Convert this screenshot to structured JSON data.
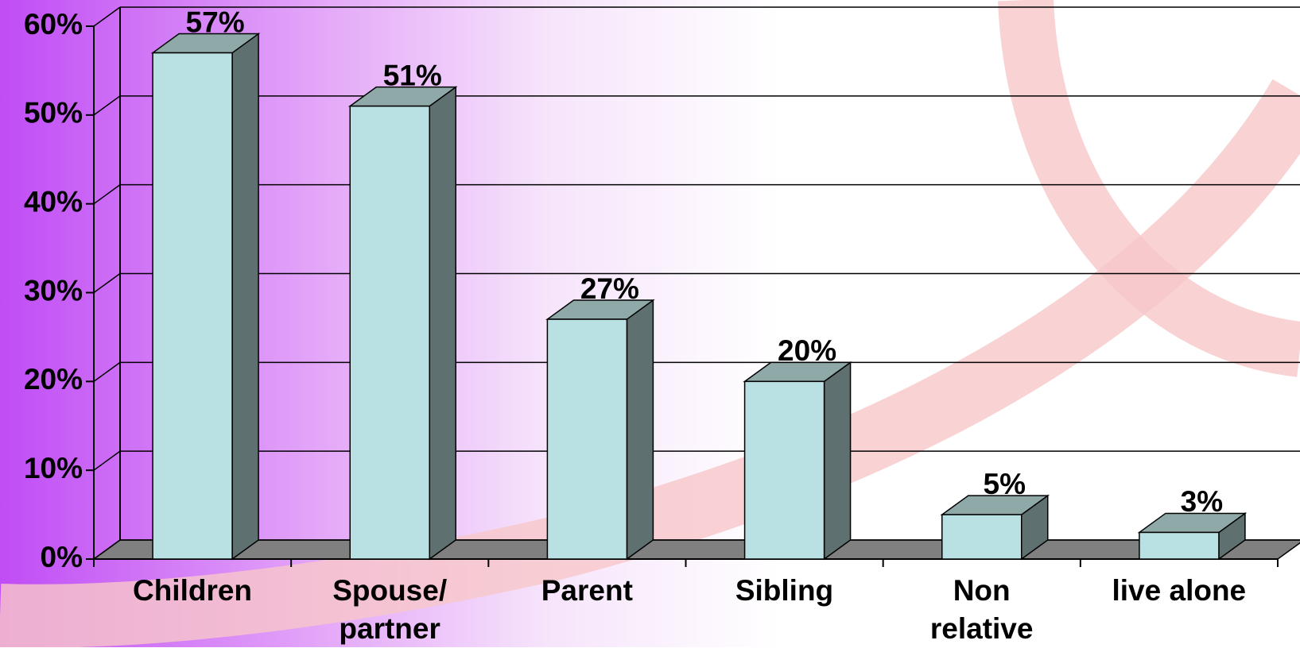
{
  "chart_data": {
    "type": "bar3d",
    "categories": [
      "Children",
      "Spouse/\npartner",
      "Parent",
      "Sibling",
      "Non\nrelative",
      "live alone"
    ],
    "values": [
      57,
      51,
      27,
      20,
      5,
      3
    ],
    "value_labels": [
      "57%",
      "51%",
      "27%",
      "20%",
      "5%",
      "3%"
    ],
    "color": "#b9e0e3",
    "ylim": [
      0,
      60
    ],
    "yticks": [
      {
        "value": 0,
        "label": "0%"
      },
      {
        "value": 10,
        "label": "10%"
      },
      {
        "value": 20,
        "label": "20%"
      },
      {
        "value": 30,
        "label": "30%"
      },
      {
        "value": 40,
        "label": "40%"
      },
      {
        "value": 50,
        "label": "50%"
      },
      {
        "value": 60,
        "label": "60%"
      }
    ],
    "grid": true
  }
}
